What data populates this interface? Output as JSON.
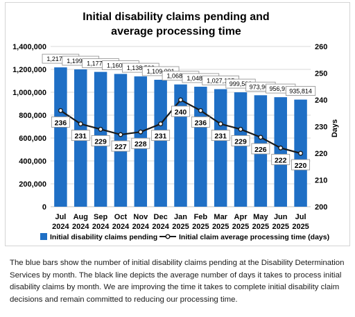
{
  "chart_data": {
    "type": "bar",
    "title_lines": [
      "Initial disability claims pending and",
      "average processing time"
    ],
    "categories": [
      [
        "Jul",
        "2024"
      ],
      [
        "Aug",
        "2024"
      ],
      [
        "Sep",
        "2024"
      ],
      [
        "Oct",
        "2024"
      ],
      [
        "Nov",
        "2024"
      ],
      [
        "Dec",
        "2024"
      ],
      [
        "Jan",
        "2025"
      ],
      [
        "Feb",
        "2025"
      ],
      [
        "Mar",
        "2025"
      ],
      [
        "Apr",
        "2025"
      ],
      [
        "May",
        "2025"
      ],
      [
        "Jun",
        "2025"
      ],
      [
        "Jul",
        "2025"
      ]
    ],
    "series": [
      {
        "name": "Initial disability claims pending",
        "type": "bar",
        "axis": "left",
        "color": "#1f6fc5",
        "values": [
          1217444,
          1199676,
          1177974,
          1160157,
          1138532,
          1109001,
          1068398,
          1048379,
          1027185,
          999583,
          973969,
          956912,
          935814
        ],
        "labels": [
          "1,217,444",
          "1,199,676",
          "1,177,974",
          "1,160,157",
          "1,138,532",
          "1,109,001",
          "1,068,398",
          "1,048,379",
          "1,027,185",
          "999,583",
          "973,969",
          "956,912",
          "935,814"
        ]
      },
      {
        "name": "Initial claim average processing time (days)",
        "type": "line",
        "axis": "right",
        "color": "#1a1a1a",
        "values": [
          236,
          231,
          229,
          227,
          228,
          231,
          240,
          236,
          231,
          229,
          226,
          222,
          220
        ]
      }
    ],
    "ylim_left": [
      0,
      1400000
    ],
    "yticks_left": [
      "0",
      "200,000",
      "400,000",
      "600,000",
      "800,000",
      "1,000,000",
      "1,200,000",
      "1,400,000"
    ],
    "ylim_right": [
      200,
      260
    ],
    "yticks_right": [
      "200",
      "210",
      "220",
      "230",
      "240",
      "250",
      "260"
    ],
    "ylabel_right": "Days",
    "grid": true,
    "legend_position": "bottom"
  },
  "caption": "The blue bars show the number of initial disability claims pending at the Disability Determination Services by month. The black line depicts the average number of days it takes to process initial disability claims by month. We are improving the time it takes to complete initial disability claim decisions and remain committed to reducing our processing time."
}
